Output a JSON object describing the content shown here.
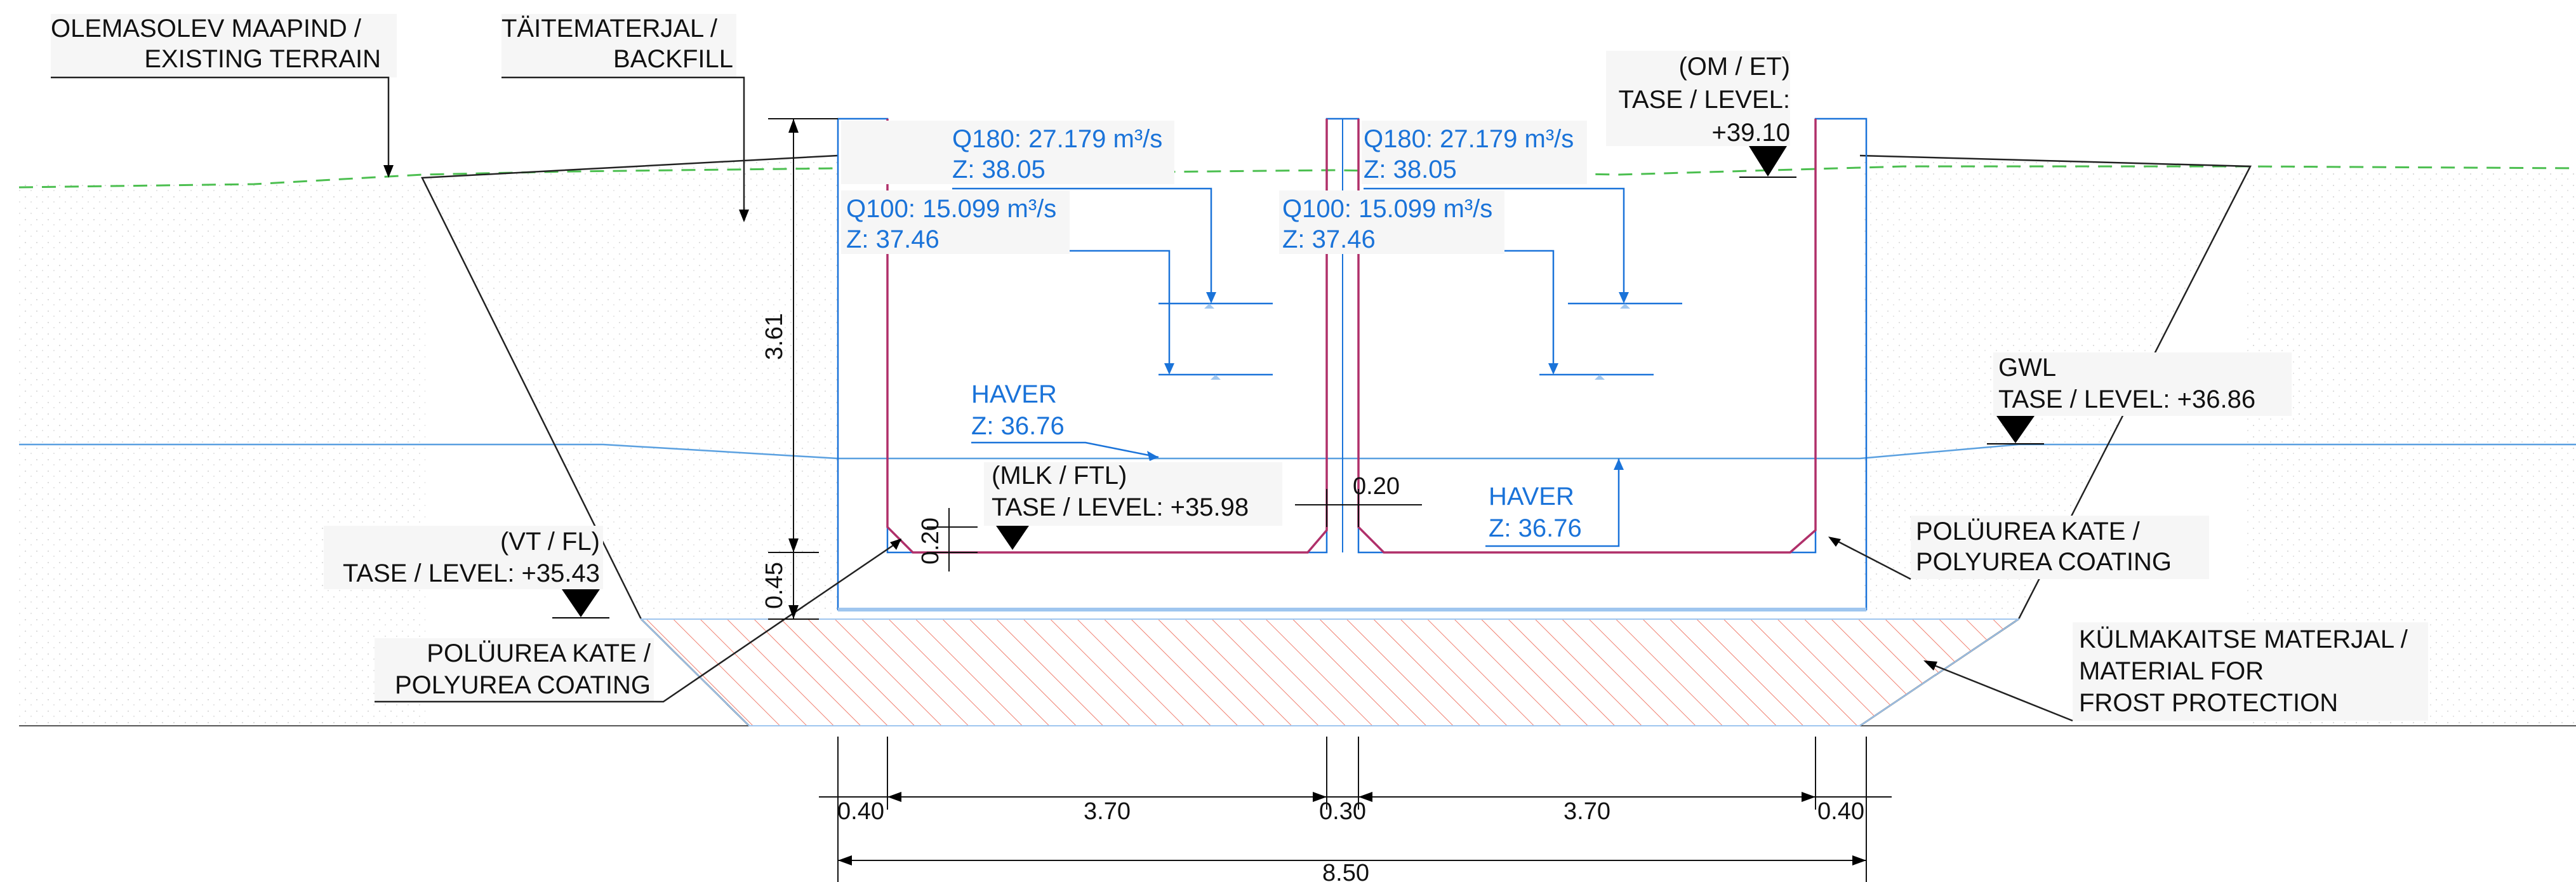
{
  "labels": {
    "existing_terrain": [
      "OLEMASOLEV MAAPIND /",
      "EXISTING TERRAIN"
    ],
    "backfill": [
      "TÄITEMATERJAL /",
      "BACKFILL"
    ],
    "top_level": [
      "(OM / ET)",
      "TASE / LEVEL:",
      "+39.10"
    ],
    "gwl": [
      "GWL",
      "TASE / LEVEL: +36.86"
    ],
    "floor_level": [
      "(MLK / FTL)",
      "TASE / LEVEL: +35.98"
    ],
    "foundation_level": [
      "(VT / FL)",
      "TASE / LEVEL: +35.43"
    ],
    "coating_right": [
      "POLÜUREA KATE /",
      "POLYUREA COATING"
    ],
    "coating_left": [
      "POLÜUREA KATE /",
      "POLYUREA COATING"
    ],
    "frost": [
      "KÜLMAKAITSE MATERJAL /",
      "MATERIAL FOR",
      "FROST PROTECTION"
    ]
  },
  "water_levels": {
    "q180_left": {
      "q": "Q180: 27.179 m³/s",
      "z": "Z: 38.05"
    },
    "q100_left": {
      "q": "Q100: 15.099 m³/s",
      "z": "Z: 37.46"
    },
    "q180_right": {
      "q": "Q180: 27.179 m³/s",
      "z": "Z: 38.05"
    },
    "q100_right": {
      "q": "Q100: 15.099 m³/s",
      "z": "Z: 37.46"
    },
    "haver_left": [
      "HAVER",
      "Z: 36.76"
    ],
    "haver_right": [
      "HAVER",
      "Z: 36.76"
    ]
  },
  "dimensions": {
    "vertical": [
      "3.61",
      "0.45",
      "0.20"
    ],
    "wall_gap": "0.20",
    "horizontal": [
      "0.40",
      "3.70",
      "0.30",
      "3.70",
      "0.40"
    ],
    "total": "8.50"
  },
  "colors": {
    "water": "#1a73d9",
    "coating": "#b0306a",
    "ground_line": "#4cbf50",
    "frost_hatch": "#f08070"
  }
}
